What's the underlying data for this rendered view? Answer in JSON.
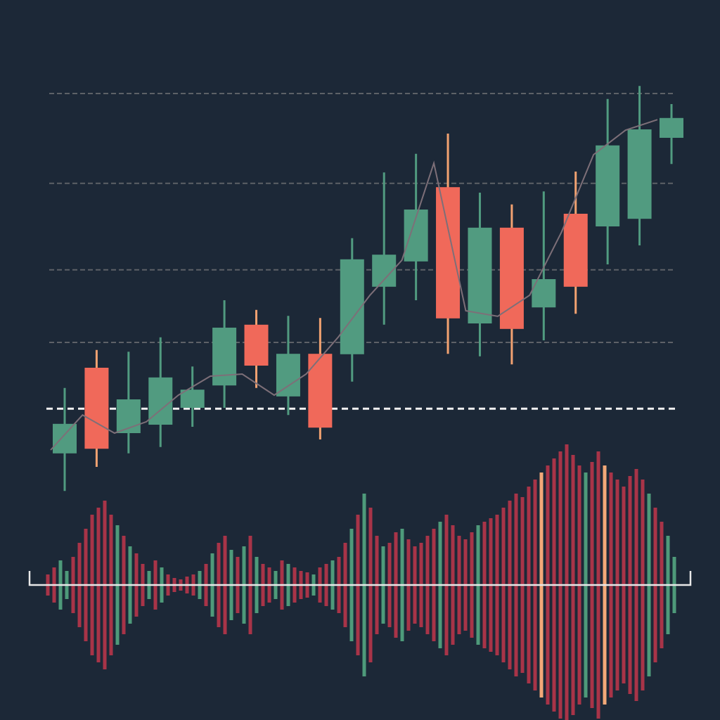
{
  "chart_data": [
    {
      "type": "candlestick",
      "up_color": "#519b80",
      "down_color": "#f0695a",
      "down_wick_color": "#f2a271",
      "ma_color": "#7d6f78",
      "ylim": [
        0,
        100
      ],
      "yticks": [
        35.5,
        52.7,
        73.2,
        94.5
      ],
      "grid": true,
      "reference_line": 19.8,
      "open": [
        9.2,
        29.5,
        14,
        16,
        20,
        25.3,
        39.7,
        22.7,
        32.8,
        32.7,
        48.7,
        54.7,
        72.3,
        40,
        62.7,
        43.8,
        66,
        63,
        64.8,
        84
      ],
      "close": [
        16.2,
        10.3,
        22,
        27.2,
        24.3,
        39,
        30,
        32.8,
        15.3,
        55.2,
        56.3,
        67,
        41.2,
        62.7,
        38.7,
        50.5,
        48.7,
        82.2,
        86,
        88.7
      ],
      "high": [
        24.7,
        33.7,
        33.3,
        36.7,
        29.8,
        45.5,
        43.2,
        41.8,
        41.3,
        60.2,
        75.8,
        80.2,
        85,
        71,
        68.2,
        71.3,
        76,
        93.2,
        96.3,
        92
      ],
      "low": [
        0.3,
        6,
        9.2,
        10.7,
        15.5,
        20,
        24.7,
        18.3,
        12.5,
        26.2,
        39.7,
        45.5,
        32.8,
        32.2,
        30.3,
        36,
        42.3,
        54,
        58.5,
        77.8
      ],
      "ma": [
        10,
        18.3,
        14,
        16.7,
        23,
        27.5,
        28,
        23,
        28,
        36.7,
        46.7,
        55,
        78,
        43,
        41.7,
        46.7,
        61.7,
        80,
        85.8,
        88.3
      ]
    },
    {
      "type": "bar",
      "ylim": [
        0,
        200
      ],
      "values": [
        15,
        25,
        35,
        20,
        40,
        60,
        80,
        100,
        110,
        120,
        100,
        85,
        70,
        55,
        45,
        30,
        20,
        35,
        25,
        15,
        10,
        8,
        12,
        15,
        20,
        30,
        45,
        60,
        70,
        50,
        40,
        55,
        70,
        40,
        30,
        25,
        20,
        35,
        30,
        25,
        20,
        18,
        15,
        25,
        30,
        35,
        40,
        60,
        80,
        100,
        130,
        110,
        70,
        55,
        60,
        75,
        80,
        65,
        55,
        60,
        70,
        80,
        90,
        100,
        85,
        70,
        65,
        75,
        85,
        90,
        95,
        100,
        110,
        120,
        130,
        125,
        140,
        150,
        160,
        170,
        180,
        190,
        200,
        185,
        170,
        160,
        175,
        190,
        170,
        160,
        150,
        140,
        155,
        165,
        150,
        130,
        110,
        90,
        70,
        40
      ],
      "colors": [
        "#a83448",
        "#a83448",
        "#4e9a7a",
        "#4e9a7a",
        "#a83448",
        "#a83448",
        "#a83448",
        "#a83448",
        "#a83448",
        "#a83448",
        "#a83448",
        "#4e9a7a",
        "#a83448",
        "#4e9a7a",
        "#a83448",
        "#a83448",
        "#4e9a7a",
        "#a83448",
        "#4e9a7a",
        "#a83448",
        "#a83448",
        "#a83448",
        "#a83448",
        "#a83448",
        "#4e9a7a",
        "#a83448",
        "#4e9a7a",
        "#a83448",
        "#a83448",
        "#4e9a7a",
        "#a83448",
        "#4e9a7a",
        "#a83448",
        "#4e9a7a",
        "#a83448",
        "#a83448",
        "#4e9a7a",
        "#a83448",
        "#4e9a7a",
        "#a83448",
        "#a83448",
        "#a83448",
        "#4e9a7a",
        "#a83448",
        "#a83448",
        "#4e9a7a",
        "#a83448",
        "#a83448",
        "#4e9a7a",
        "#a83448",
        "#4e9a7a",
        "#a83448",
        "#a83448",
        "#4e9a7a",
        "#a83448",
        "#a83448",
        "#4e9a7a",
        "#a83448",
        "#a83448",
        "#a83448",
        "#a83448",
        "#a83448",
        "#4e9a7a",
        "#a83448",
        "#a83448",
        "#a83448",
        "#a83448",
        "#a83448",
        "#4e9a7a",
        "#a83448",
        "#a83448",
        "#a83448",
        "#a83448",
        "#a83448",
        "#a83448",
        "#a83448",
        "#a83448",
        "#a83448",
        "#f2a878",
        "#a83448",
        "#a83448",
        "#a83448",
        "#a83448",
        "#a83448",
        "#a83448",
        "#4e9a7a",
        "#a83448",
        "#a83448",
        "#f2a878",
        "#a83448",
        "#a83448",
        "#a83448",
        "#a83448",
        "#a83448",
        "#a83448",
        "#4e9a7a",
        "#a83448",
        "#a83448",
        "#4e9a7a",
        "#4e9a7a"
      ]
    }
  ]
}
